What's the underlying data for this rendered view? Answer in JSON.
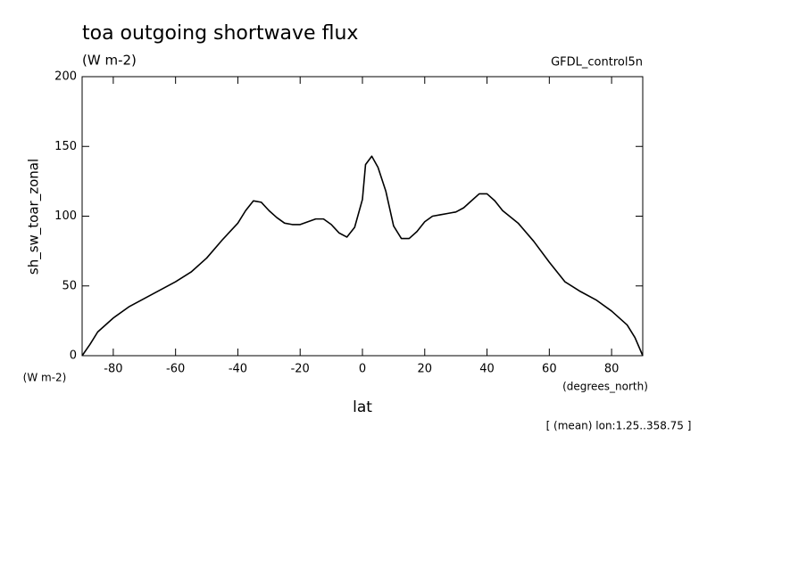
{
  "chart_data": {
    "type": "line",
    "title": "toa outgoing shortwave flux",
    "subtitle": "(W m-2)",
    "dataset": "GFDL_control5n",
    "y_label": "sh_sw_toar_zonal",
    "y_units": "(W m-2)",
    "x_label": "lat",
    "x_units": "(degrees_north)",
    "annotation": "[ (mean) lon:1.25..358.75 ]",
    "color": "#000000",
    "xlim": [
      -90,
      90
    ],
    "ylim": [
      0,
      200
    ],
    "xticks": [
      -80,
      -60,
      -40,
      -20,
      0,
      20,
      40,
      60,
      80
    ],
    "yticks": [
      0,
      50,
      100,
      150,
      200
    ],
    "grid": false,
    "x": [
      -90,
      -87.5,
      -85,
      -80,
      -75,
      -70,
      -65,
      -60,
      -55,
      -50,
      -45,
      -40,
      -37.5,
      -35,
      -32.5,
      -30,
      -27.5,
      -25,
      -22.5,
      -20,
      -17.5,
      -15,
      -12.5,
      -10,
      -7.5,
      -5,
      -2.5,
      0,
      1,
      3,
      5,
      7.5,
      10,
      12.5,
      15,
      17.5,
      20,
      22.5,
      25,
      27.5,
      30,
      32.5,
      35,
      37.5,
      40,
      42.5,
      45,
      50,
      55,
      60,
      65,
      70,
      75,
      80,
      85,
      87.5,
      90
    ],
    "values": [
      0,
      8,
      17,
      27,
      35,
      41,
      47,
      53,
      60,
      70,
      83,
      95,
      104,
      111,
      110,
      104,
      99,
      95,
      94,
      94,
      96,
      98,
      98,
      94,
      88,
      85,
      92,
      112,
      137,
      143,
      135,
      118,
      93,
      84,
      84,
      89,
      96,
      100,
      101,
      102,
      103,
      106,
      111,
      116,
      116,
      111,
      104,
      95,
      82,
      67,
      53,
      46,
      40,
      32,
      22,
      13,
      0
    ]
  }
}
